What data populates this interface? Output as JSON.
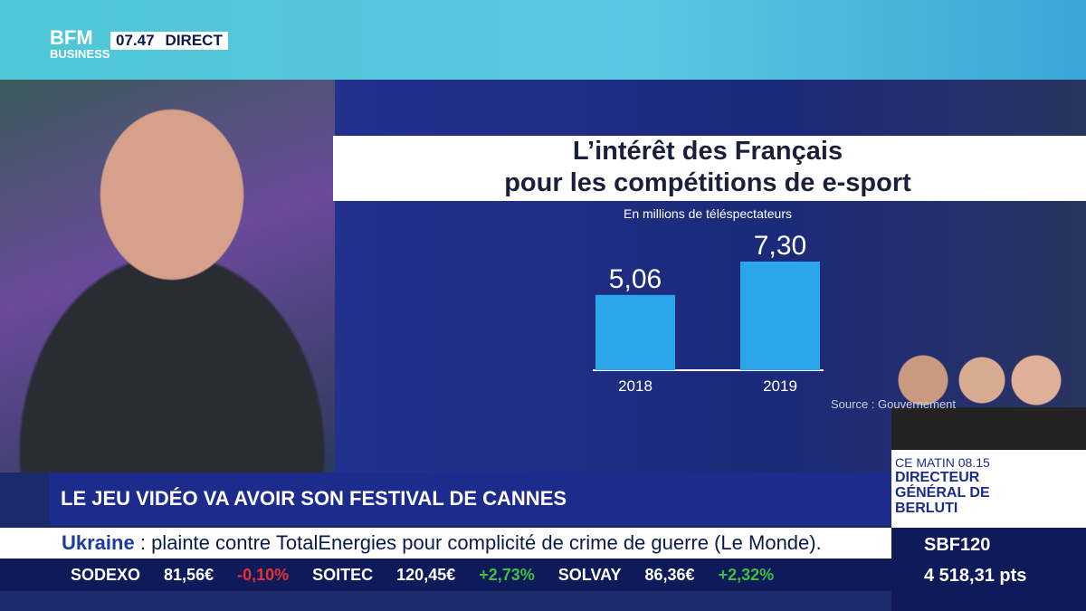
{
  "channel": {
    "logo_top": "BFM",
    "logo_bottom": "BUSINESS",
    "time": "07.47",
    "live": "DIRECT"
  },
  "chart_data": {
    "type": "bar",
    "title_line1": "L’intérêt des Français",
    "title_line2": "pour les compétitions de e-sport",
    "subtitle": "En millions de téléspectateurs",
    "categories": [
      "2018",
      "2019"
    ],
    "values": [
      5.06,
      7.3
    ],
    "value_labels": [
      "5,06",
      "7,30"
    ],
    "color": "#2ba6ea",
    "source": "Source : Gouvernement"
  },
  "headline": "LE JEU VIDÉO VA AVOIR SON FESTIVAL DE CANNES",
  "news_ticker": {
    "topic": "Ukraine",
    "text": ": plainte contre TotalEnergies pour complicité de crime de guerre (Le Monde)."
  },
  "stocks": [
    {
      "name": "SODEXO",
      "price": "81,56€",
      "change": "-0,10%",
      "color": "#e8322e"
    },
    {
      "name": "SOITEC",
      "price": "120,45€",
      "change": "+2,73%",
      "color": "#3fbf3f"
    },
    {
      "name": "SOLVAY",
      "price": "86,36€",
      "change": "+2,32%",
      "color": "#3fbf3f"
    }
  ],
  "upcoming": {
    "time": "CE MATIN 08.15",
    "guest": "DIRECTEUR GÉNÉRAL DE BERLUTI"
  },
  "index": {
    "name": "SBF120",
    "value": "4 518,31 pts"
  }
}
